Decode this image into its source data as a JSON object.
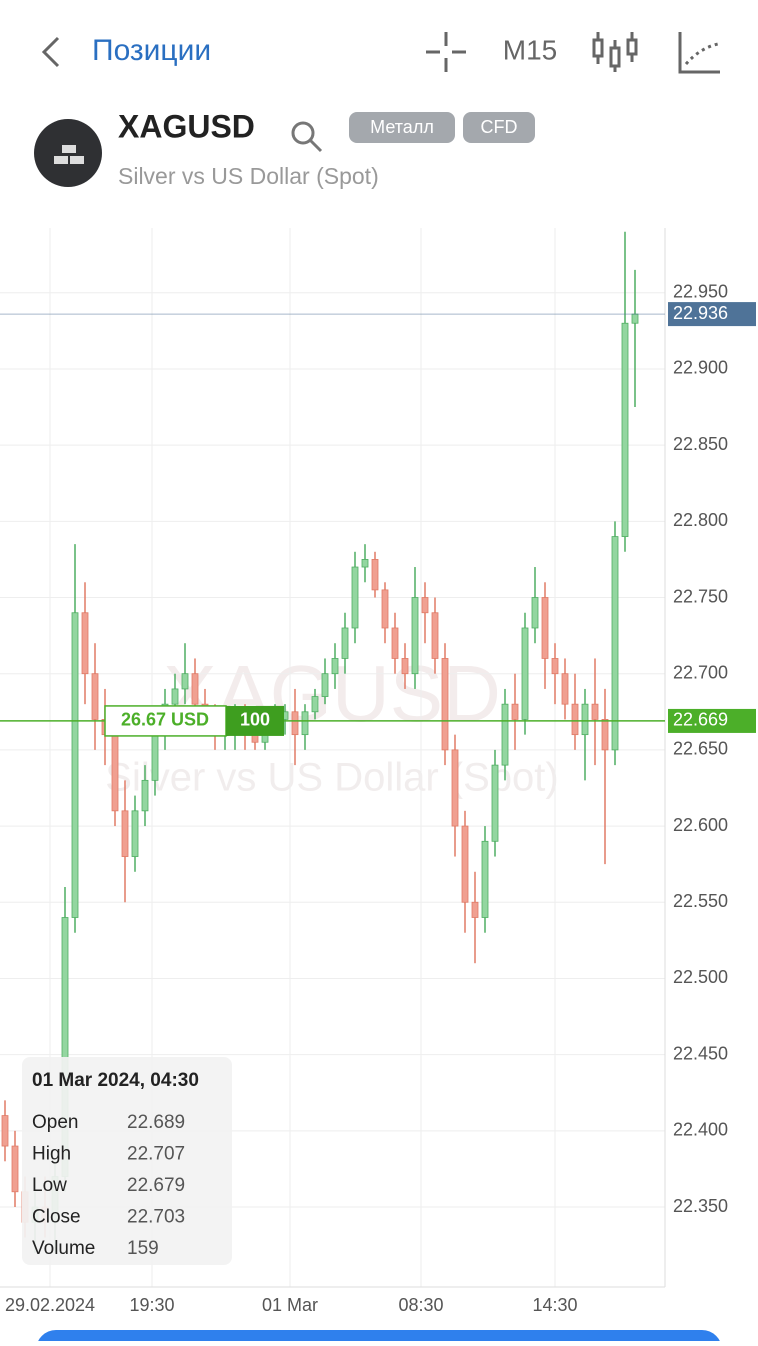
{
  "header": {
    "back_title": "Позиции",
    "timeframe": "M15"
  },
  "instrument": {
    "symbol": "XAGUSD",
    "tags": [
      "Металл",
      "CFD"
    ],
    "description": "Silver vs US Dollar (Spot)"
  },
  "chart_data": {
    "type": "candlestick",
    "x": [
      0,
      1,
      2,
      3,
      4,
      5,
      6,
      7,
      8,
      9,
      10,
      11,
      12,
      13,
      14,
      15,
      16,
      17,
      18,
      19,
      20,
      21,
      22,
      23,
      24,
      25,
      26,
      27,
      28,
      29,
      30,
      31,
      32,
      33,
      34,
      35,
      36,
      37,
      38,
      39,
      40,
      41,
      42,
      43,
      44,
      45,
      46,
      47,
      48,
      49,
      50,
      51,
      52,
      53,
      54,
      55,
      56,
      57,
      58,
      59,
      60,
      61,
      62,
      63
    ],
    "open": [
      22.41,
      22.39,
      22.36,
      22.34,
      22.35,
      22.34,
      22.37,
      22.54,
      22.74,
      22.7,
      22.67,
      22.66,
      22.61,
      22.58,
      22.61,
      22.63,
      22.66,
      22.68,
      22.69,
      22.7,
      22.68,
      22.67,
      22.66,
      22.66,
      22.67,
      22.66,
      22.655,
      22.665,
      22.67,
      22.675,
      22.66,
      22.675,
      22.685,
      22.7,
      22.71,
      22.73,
      22.77,
      22.775,
      22.755,
      22.73,
      22.71,
      22.7,
      22.75,
      22.74,
      22.71,
      22.65,
      22.6,
      22.55,
      22.54,
      22.59,
      22.64,
      22.68,
      22.67,
      22.73,
      22.75,
      22.71,
      22.7,
      22.68,
      22.66,
      22.68,
      22.67,
      22.65,
      22.79,
      22.93
    ],
    "high": [
      22.42,
      22.4,
      22.37,
      22.36,
      22.37,
      22.38,
      22.56,
      22.785,
      22.76,
      22.72,
      22.69,
      22.67,
      22.63,
      22.62,
      22.64,
      22.67,
      22.69,
      22.7,
      22.72,
      22.71,
      22.69,
      22.68,
      22.67,
      22.68,
      22.68,
      22.67,
      22.67,
      22.68,
      22.68,
      22.69,
      22.68,
      22.69,
      22.71,
      22.72,
      22.74,
      22.78,
      22.785,
      22.78,
      22.76,
      22.74,
      22.72,
      22.77,
      22.76,
      22.75,
      22.72,
      22.66,
      22.61,
      22.57,
      22.6,
      22.65,
      22.69,
      22.7,
      22.74,
      22.77,
      22.76,
      22.72,
      22.71,
      22.7,
      22.69,
      22.71,
      22.69,
      22.8,
      22.99,
      22.965
    ],
    "low": [
      22.38,
      22.35,
      22.33,
      22.32,
      22.33,
      22.32,
      22.36,
      22.53,
      22.68,
      22.65,
      22.64,
      22.6,
      22.55,
      22.57,
      22.6,
      22.62,
      22.65,
      22.67,
      22.68,
      22.67,
      22.66,
      22.65,
      22.65,
      22.65,
      22.65,
      22.65,
      22.65,
      22.66,
      22.66,
      22.64,
      22.65,
      22.67,
      22.68,
      22.69,
      22.7,
      22.72,
      22.76,
      22.75,
      22.72,
      22.7,
      22.69,
      22.69,
      22.72,
      22.7,
      22.64,
      22.58,
      22.53,
      22.51,
      22.53,
      22.58,
      22.63,
      22.65,
      22.66,
      22.72,
      22.69,
      22.68,
      22.67,
      22.65,
      22.63,
      22.64,
      22.575,
      22.64,
      22.78,
      22.875
    ],
    "close": [
      22.39,
      22.36,
      22.34,
      22.35,
      22.34,
      22.37,
      22.54,
      22.74,
      22.7,
      22.67,
      22.66,
      22.61,
      22.58,
      22.61,
      22.63,
      22.66,
      22.68,
      22.69,
      22.7,
      22.68,
      22.67,
      22.66,
      22.66,
      22.67,
      22.66,
      22.655,
      22.665,
      22.67,
      22.675,
      22.66,
      22.675,
      22.685,
      22.7,
      22.71,
      22.73,
      22.77,
      22.775,
      22.755,
      22.73,
      22.71,
      22.7,
      22.75,
      22.74,
      22.71,
      22.65,
      22.6,
      22.55,
      22.54,
      22.59,
      22.64,
      22.68,
      22.67,
      22.73,
      22.75,
      22.71,
      22.7,
      22.68,
      22.66,
      22.68,
      22.67,
      22.65,
      22.79,
      22.93,
      22.936
    ],
    "up_color": "#93d6a0",
    "up_edge": "#4fae62",
    "down_color": "#f0a091",
    "down_edge": "#e07a66",
    "xlim": [
      -0.5,
      66
    ],
    "xticks": [
      {
        "value": 4.5,
        "label": "29.02.2024"
      },
      {
        "value": 14.7,
        "label": "19:30"
      },
      {
        "value": 28.5,
        "label": "01 Mar"
      },
      {
        "value": 41.6,
        "label": "08:30"
      },
      {
        "value": 55,
        "label": "14:30"
      }
    ],
    "ylim": [
      22.2975,
      22.9925
    ],
    "yticks": [
      {
        "value": 22.35,
        "label": "22.350"
      },
      {
        "value": 22.4,
        "label": "22.400"
      },
      {
        "value": 22.45,
        "label": "22.450"
      },
      {
        "value": 22.5,
        "label": "22.500"
      },
      {
        "value": 22.55,
        "label": "22.550"
      },
      {
        "value": 22.6,
        "label": "22.600"
      },
      {
        "value": 22.65,
        "label": "22.650"
      },
      {
        "value": 22.7,
        "label": "22.700"
      },
      {
        "value": 22.75,
        "label": "22.750"
      },
      {
        "value": 22.8,
        "label": "22.800"
      },
      {
        "value": 22.85,
        "label": "22.850"
      },
      {
        "value": 22.9,
        "label": "22.900"
      },
      {
        "value": 22.95,
        "label": "22.950"
      }
    ],
    "grid": true,
    "price_lines": [
      {
        "value": 22.936,
        "color": "#4f7398"
      },
      {
        "value": 22.669,
        "color": "#4caf29"
      }
    ],
    "position": {
      "profit": "26.67 USD",
      "volume": 100
    },
    "info": {
      "date": "01 Mar 2024, 04:30",
      "rows": [
        {
          "label": "Open",
          "value": 22.689
        },
        {
          "label": "High",
          "value": 22.707
        },
        {
          "label": "Low",
          "value": 22.679
        },
        {
          "label": "Close",
          "value": 22.703
        },
        {
          "label": "Volume",
          "value": 159
        }
      ]
    }
  }
}
